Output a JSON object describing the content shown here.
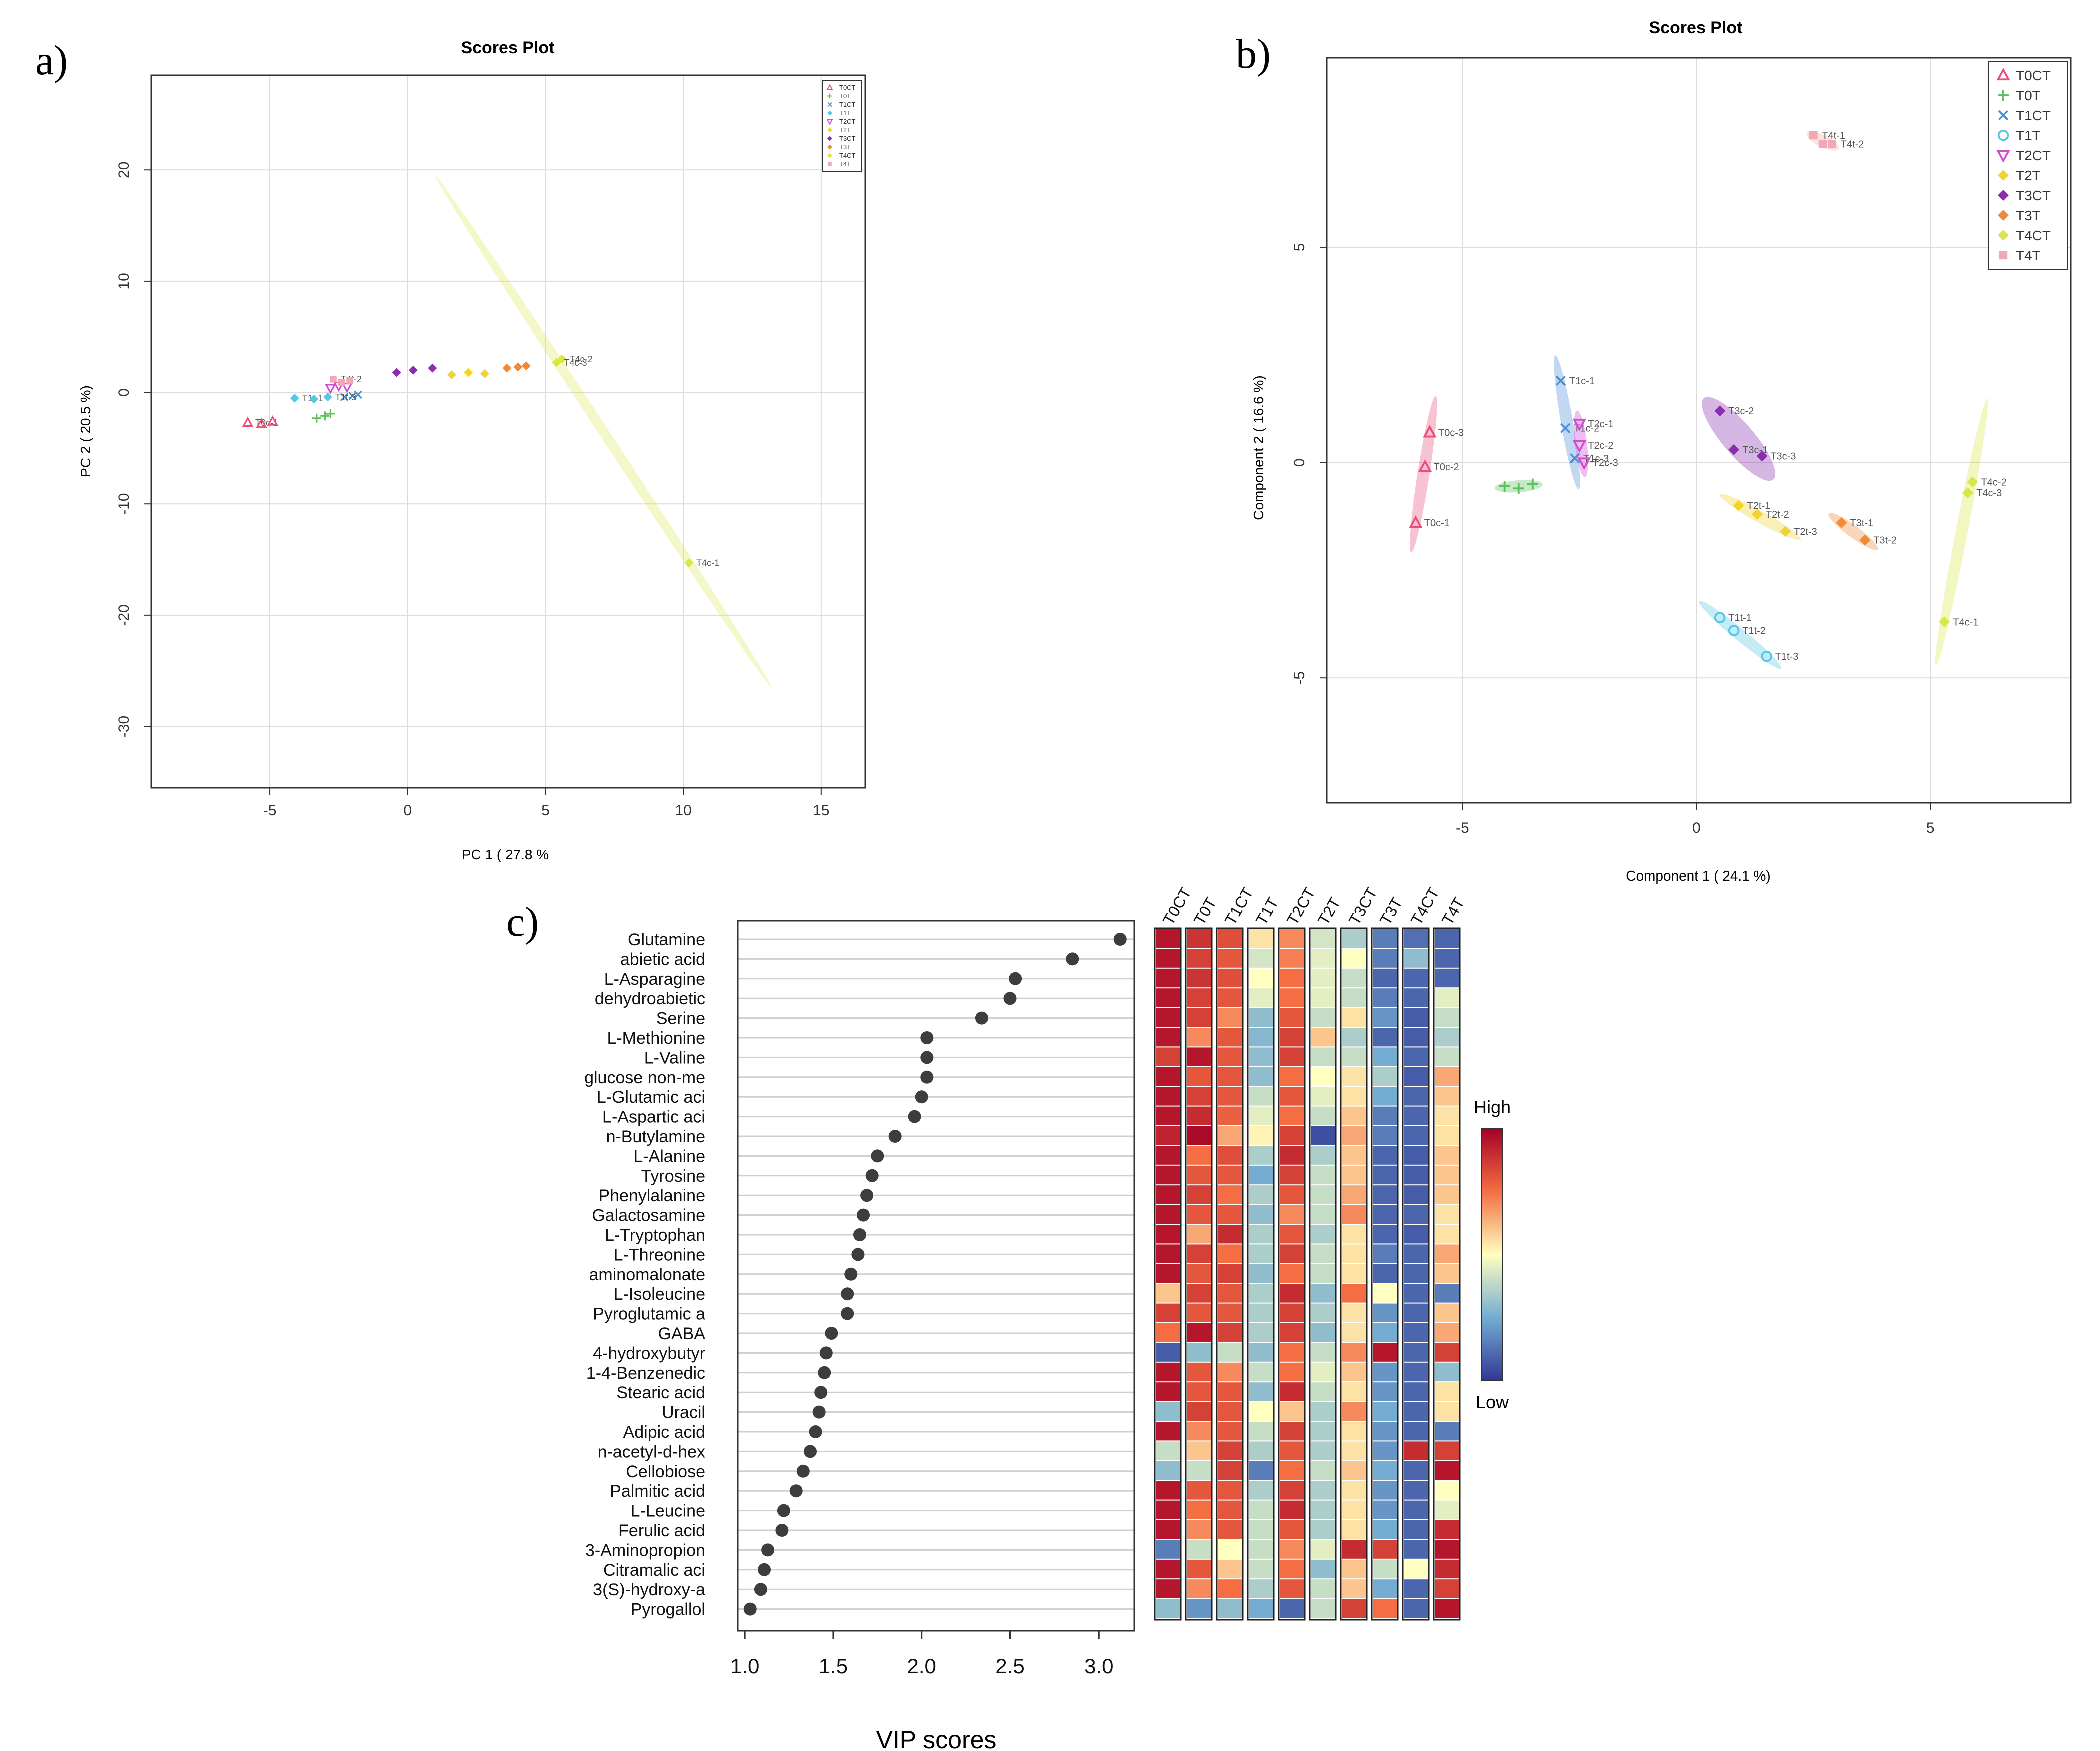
{
  "panel_labels": [
    "a)",
    "b)",
    "c)"
  ],
  "chart_data": [
    {
      "type": "scatter",
      "panel": "a)",
      "title": "Scores Plot",
      "xlabel": "PC 1 ( 27.8 %",
      "ylabel": "PC 2 ( 20.5 %)",
      "xlim": [
        -9.3,
        16.6
      ],
      "ylim": [
        -35.5,
        28.5
      ],
      "xticks": [
        -5,
        0,
        5,
        10,
        15
      ],
      "yticks": [
        20,
        10,
        0,
        -10,
        -20,
        -30
      ],
      "grid": true,
      "legend": "top-right",
      "legend_entries": [
        "T0CT",
        "T0T",
        "T1CT",
        "T1T",
        "T2CT",
        "T2T",
        "T3CT",
        "T3T",
        "T4CT",
        "T4T"
      ],
      "series": [
        {
          "name": "T0CT",
          "color": "#e8507a",
          "marker": "triangle",
          "points": [
            [
              -5.8,
              -2.7,
              "T0c-1"
            ],
            [
              -5.3,
              -2.8,
              ""
            ],
            [
              -4.9,
              -2.6,
              ""
            ]
          ]
        },
        {
          "name": "T0T",
          "color": "#5cc05c",
          "marker": "plus",
          "points": [
            [
              -3.3,
              -2.3,
              ""
            ],
            [
              -3.0,
              -2.1,
              ""
            ],
            [
              -2.8,
              -1.9,
              ""
            ]
          ]
        },
        {
          "name": "T1CT",
          "color": "#4a8fd8",
          "marker": "x",
          "points": [
            [
              -2.3,
              -0.4,
              ""
            ],
            [
              -2.0,
              -0.3,
              ""
            ],
            [
              -1.8,
              -0.2,
              ""
            ]
          ]
        },
        {
          "name": "T1T",
          "color": "#57c7e6",
          "marker": "diamond",
          "points": [
            [
              -4.1,
              -0.5,
              "T1t-1"
            ],
            [
              -3.4,
              -0.6,
              ""
            ],
            [
              -2.9,
              -0.4,
              "T1t-3"
            ]
          ]
        },
        {
          "name": "T2CT",
          "color": "#d24bd2",
          "marker": "triangle-down",
          "points": [
            [
              -2.8,
              0.4,
              ""
            ],
            [
              -2.5,
              0.6,
              ""
            ],
            [
              -2.2,
              0.5,
              ""
            ]
          ]
        },
        {
          "name": "T2T",
          "color": "#f2d430",
          "marker": "diamond",
          "points": [
            [
              1.6,
              1.6,
              ""
            ],
            [
              2.2,
              1.8,
              ""
            ],
            [
              2.8,
              1.7,
              ""
            ]
          ]
        },
        {
          "name": "T3CT",
          "color": "#8a2eaf",
          "marker": "diamond",
          "points": [
            [
              -0.4,
              1.8,
              ""
            ],
            [
              0.2,
              2.0,
              ""
            ],
            [
              0.9,
              2.2,
              ""
            ]
          ]
        },
        {
          "name": "T3T",
          "color": "#ef8a3a",
          "marker": "diamond",
          "points": [
            [
              3.6,
              2.2,
              ""
            ],
            [
              4.0,
              2.3,
              ""
            ],
            [
              4.3,
              2.4,
              ""
            ]
          ]
        },
        {
          "name": "T4CT",
          "color": "#d9e64a",
          "marker": "diamond",
          "points": [
            [
              5.6,
              3.0,
              "T4c-2"
            ],
            [
              5.4,
              2.7,
              "T4c-3"
            ],
            [
              10.2,
              -15.3,
              "T4c-1"
            ]
          ]
        },
        {
          "name": "T4T",
          "color": "#f3a7b3",
          "marker": "square",
          "points": [
            [
              -2.7,
              1.2,
              "T4t-2"
            ],
            [
              -2.4,
              0.9,
              ""
            ],
            [
              -2.1,
              1.1,
              ""
            ]
          ]
        }
      ]
    },
    {
      "type": "scatter",
      "panel": "b)",
      "title": "Scores Plot",
      "xlabel": "Component 1 ( 24.1 %)",
      "ylabel": "Component 2 ( 16.6 %)",
      "xlim": [
        -7.9,
        8.0
      ],
      "ylim": [
        -7.9,
        9.4
      ],
      "xticks": [
        -5,
        0,
        5
      ],
      "yticks": [
        5,
        0,
        -5
      ],
      "grid": true,
      "legend": "top-right",
      "legend_entries": [
        "T0CT",
        "T0T",
        "T1CT",
        "T1T",
        "T2CT",
        "T2T",
        "T3CT",
        "T3T",
        "T4CT",
        "T4T"
      ],
      "series": [
        {
          "name": "T0CT",
          "color": "#e8507a",
          "marker": "triangle",
          "points": [
            [
              -5.7,
              0.7,
              "T0c-3"
            ],
            [
              -5.8,
              -0.1,
              "T0c-2"
            ],
            [
              -6.0,
              -1.4,
              "T0c-1"
            ]
          ]
        },
        {
          "name": "T0T",
          "color": "#5cc05c",
          "marker": "plus",
          "points": [
            [
              -4.1,
              -0.55,
              ""
            ],
            [
              -3.8,
              -0.6,
              ""
            ],
            [
              -3.5,
              -0.5,
              ""
            ]
          ]
        },
        {
          "name": "T1CT",
          "color": "#4a8fd8",
          "marker": "x",
          "points": [
            [
              -2.9,
              1.9,
              "T1c-1"
            ],
            [
              -2.8,
              0.8,
              "T1c-2"
            ],
            [
              -2.6,
              0.1,
              "T1c-3"
            ]
          ]
        },
        {
          "name": "T1T",
          "color": "#57c7e6",
          "marker": "circle-open",
          "points": [
            [
              0.5,
              -3.6,
              "T1t-1"
            ],
            [
              0.8,
              -3.9,
              "T1t-2"
            ],
            [
              1.5,
              -4.5,
              "T1t-3"
            ]
          ]
        },
        {
          "name": "T2CT",
          "color": "#d24bd2",
          "marker": "triangle-down",
          "points": [
            [
              -2.5,
              0.9,
              "T2c-1"
            ],
            [
              -2.5,
              0.4,
              "T2c-2"
            ],
            [
              -2.4,
              0.0,
              "T2c-3"
            ]
          ]
        },
        {
          "name": "T2T",
          "color": "#f2d430",
          "marker": "diamond",
          "points": [
            [
              0.9,
              -1.0,
              "T2t-1"
            ],
            [
              1.3,
              -1.2,
              "T2t-2"
            ],
            [
              1.9,
              -1.6,
              "T2t-3"
            ]
          ]
        },
        {
          "name": "T3CT",
          "color": "#8a2eaf",
          "marker": "diamond",
          "points": [
            [
              0.5,
              1.2,
              "T3c-2"
            ],
            [
              0.8,
              0.3,
              "T3c-1"
            ],
            [
              1.4,
              0.15,
              "T3c-3"
            ]
          ]
        },
        {
          "name": "T3T",
          "color": "#ef8a3a",
          "marker": "diamond",
          "points": [
            [
              3.1,
              -1.4,
              "T3t-1"
            ],
            [
              3.6,
              -1.8,
              "T3t-2"
            ]
          ]
        },
        {
          "name": "T4CT",
          "color": "#d9e64a",
          "marker": "diamond",
          "points": [
            [
              5.9,
              -0.45,
              "T4c-2"
            ],
            [
              5.8,
              -0.7,
              "T4c-3"
            ],
            [
              5.3,
              -3.7,
              "T4c-1"
            ]
          ]
        },
        {
          "name": "T4T",
          "color": "#f3a7b3",
          "marker": "square",
          "points": [
            [
              2.5,
              7.6,
              "T4t-1"
            ],
            [
              2.7,
              7.4,
              ""
            ],
            [
              2.9,
              7.4,
              "T4t-2"
            ]
          ]
        }
      ]
    },
    {
      "type": "scatter",
      "panel": "c)",
      "xlabel": "VIP scores",
      "xlim": [
        0.96,
        3.2
      ],
      "xticks": [
        "1.0",
        "1.5",
        "2.0",
        "2.5",
        "3.0"
      ],
      "categories": [
        "Glutamine",
        "abietic acid",
        "L-Asparagine",
        "dehydroabietic",
        "Serine",
        "L-Methionine",
        "L-Valine",
        "glucose non-me",
        "L-Glutamic aci",
        "L-Aspartic aci",
        "n-Butylamine",
        "L-Alanine",
        "Tyrosine",
        "Phenylalanine",
        "Galactosamine",
        "L-Tryptophan",
        "L-Threonine",
        "aminomalonate",
        "L-Isoleucine",
        "Pyroglutamic a",
        "GABA",
        "4-hydroxybutyr",
        "1-4-Benzenedic",
        "Stearic acid",
        "Uracil",
        "Adipic acid",
        "n-acetyl-d-hex",
        "Cellobiose",
        "Palmitic acid",
        "L-Leucine",
        "Ferulic acid",
        "3-Aminopropion",
        "Citramalic aci",
        "3(S)-hydroxy-a",
        "Pyrogallol"
      ],
      "values": [
        3.12,
        2.85,
        2.53,
        2.5,
        2.34,
        2.03,
        2.03,
        2.03,
        2.0,
        1.96,
        1.85,
        1.75,
        1.72,
        1.69,
        1.67,
        1.65,
        1.64,
        1.6,
        1.58,
        1.58,
        1.49,
        1.46,
        1.45,
        1.43,
        1.42,
        1.4,
        1.37,
        1.33,
        1.29,
        1.22,
        1.21,
        1.13,
        1.11,
        1.09,
        1.03
      ]
    },
    {
      "type": "heatmap",
      "panel": "c)",
      "columns": [
        "T0CT",
        "T0T",
        "T1CT",
        "T1T",
        "T2CT",
        "T2T",
        "T3CT",
        "T3T",
        "T4CT",
        "T4T"
      ],
      "scale": "0 = Low, 1 = High",
      "legend_high": "High",
      "legend_low": "Low",
      "values": [
        [
          0.95,
          0.88,
          0.82,
          0.55,
          0.7,
          0.42,
          0.35,
          0.15,
          0.12,
          0.1
        ],
        [
          0.95,
          0.85,
          0.8,
          0.42,
          0.72,
          0.45,
          0.5,
          0.15,
          0.3,
          0.1
        ],
        [
          0.95,
          0.88,
          0.82,
          0.5,
          0.75,
          0.45,
          0.4,
          0.1,
          0.1,
          0.1
        ],
        [
          0.95,
          0.85,
          0.8,
          0.45,
          0.75,
          0.45,
          0.4,
          0.15,
          0.1,
          0.45
        ],
        [
          0.95,
          0.85,
          0.7,
          0.3,
          0.8,
          0.4,
          0.55,
          0.2,
          0.08,
          0.4
        ],
        [
          0.95,
          0.7,
          0.8,
          0.28,
          0.85,
          0.6,
          0.35,
          0.1,
          0.08,
          0.35
        ],
        [
          0.85,
          0.95,
          0.8,
          0.3,
          0.85,
          0.4,
          0.4,
          0.25,
          0.1,
          0.4
        ],
        [
          0.95,
          0.8,
          0.8,
          0.3,
          0.75,
          0.5,
          0.55,
          0.35,
          0.08,
          0.65
        ],
        [
          0.95,
          0.85,
          0.8,
          0.4,
          0.8,
          0.45,
          0.55,
          0.25,
          0.1,
          0.6
        ],
        [
          0.95,
          0.9,
          0.78,
          0.45,
          0.75,
          0.4,
          0.6,
          0.15,
          0.1,
          0.55
        ],
        [
          0.92,
          0.98,
          0.65,
          0.52,
          0.85,
          0.05,
          0.65,
          0.15,
          0.1,
          0.55
        ],
        [
          0.95,
          0.75,
          0.82,
          0.35,
          0.9,
          0.35,
          0.6,
          0.1,
          0.08,
          0.6
        ],
        [
          0.95,
          0.8,
          0.8,
          0.25,
          0.85,
          0.4,
          0.6,
          0.1,
          0.08,
          0.6
        ],
        [
          0.95,
          0.85,
          0.75,
          0.35,
          0.8,
          0.4,
          0.65,
          0.1,
          0.08,
          0.6
        ],
        [
          0.95,
          0.8,
          0.8,
          0.3,
          0.7,
          0.4,
          0.7,
          0.1,
          0.1,
          0.55
        ],
        [
          0.95,
          0.65,
          0.9,
          0.35,
          0.8,
          0.35,
          0.55,
          0.1,
          0.08,
          0.55
        ],
        [
          0.95,
          0.85,
          0.75,
          0.35,
          0.85,
          0.4,
          0.55,
          0.15,
          0.1,
          0.65
        ],
        [
          0.95,
          0.8,
          0.85,
          0.3,
          0.75,
          0.4,
          0.55,
          0.1,
          0.1,
          0.6
        ],
        [
          0.6,
          0.85,
          0.8,
          0.35,
          0.9,
          0.3,
          0.75,
          0.5,
          0.1,
          0.15
        ],
        [
          0.85,
          0.8,
          0.8,
          0.35,
          0.85,
          0.35,
          0.55,
          0.2,
          0.1,
          0.6
        ],
        [
          0.75,
          0.95,
          0.85,
          0.35,
          0.85,
          0.3,
          0.55,
          0.25,
          0.1,
          0.65
        ],
        [
          0.08,
          0.3,
          0.4,
          0.3,
          0.75,
          0.4,
          0.7,
          0.95,
          0.1,
          0.85
        ],
        [
          0.95,
          0.8,
          0.7,
          0.4,
          0.75,
          0.45,
          0.6,
          0.2,
          0.1,
          0.3
        ],
        [
          0.95,
          0.8,
          0.8,
          0.3,
          0.9,
          0.4,
          0.55,
          0.2,
          0.1,
          0.55
        ],
        [
          0.3,
          0.85,
          0.8,
          0.5,
          0.6,
          0.35,
          0.7,
          0.25,
          0.1,
          0.55
        ],
        [
          0.95,
          0.7,
          0.8,
          0.4,
          0.85,
          0.35,
          0.55,
          0.2,
          0.1,
          0.15
        ],
        [
          0.4,
          0.6,
          0.85,
          0.35,
          0.8,
          0.35,
          0.55,
          0.2,
          0.9,
          0.85
        ],
        [
          0.3,
          0.4,
          0.85,
          0.15,
          0.75,
          0.4,
          0.6,
          0.25,
          0.1,
          0.95
        ],
        [
          0.95,
          0.8,
          0.8,
          0.35,
          0.85,
          0.35,
          0.55,
          0.2,
          0.1,
          0.5
        ],
        [
          0.95,
          0.75,
          0.8,
          0.4,
          0.9,
          0.35,
          0.55,
          0.2,
          0.1,
          0.45
        ],
        [
          0.95,
          0.7,
          0.8,
          0.4,
          0.8,
          0.35,
          0.55,
          0.25,
          0.1,
          0.9
        ],
        [
          0.15,
          0.4,
          0.5,
          0.4,
          0.7,
          0.45,
          0.9,
          0.85,
          0.1,
          0.95
        ],
        [
          0.95,
          0.8,
          0.6,
          0.4,
          0.75,
          0.3,
          0.6,
          0.4,
          0.5,
          0.9
        ],
        [
          0.95,
          0.7,
          0.75,
          0.35,
          0.8,
          0.4,
          0.6,
          0.25,
          0.1,
          0.85
        ],
        [
          0.3,
          0.2,
          0.3,
          0.25,
          0.1,
          0.4,
          0.85,
          0.75,
          0.1,
          0.95
        ]
      ]
    }
  ]
}
